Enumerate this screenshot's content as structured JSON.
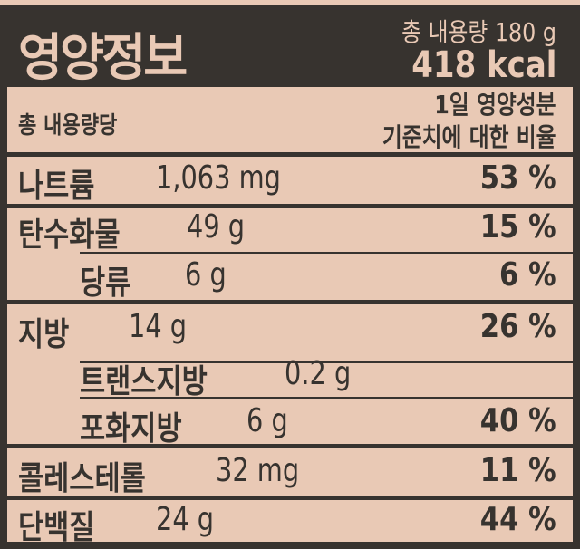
{
  "header": {
    "title": "영양정보",
    "total_amount": "총 내용량 180 g",
    "calories": "418 kcal"
  },
  "subheader": {
    "per_label": "총 내용량당",
    "dv_line1": "1일 영양성분",
    "dv_line2": "기준치에 대한 비율"
  },
  "nutrients": [
    {
      "name": "나트륨",
      "amount": "1,063 mg",
      "percent": "53 %"
    },
    {
      "name": "탄수화물",
      "amount": "49 g",
      "percent": "15 %"
    },
    {
      "name": "당류",
      "amount": "6 g",
      "percent": "6 %"
    },
    {
      "name": "지방",
      "amount": "14 g",
      "percent": "26 %"
    },
    {
      "name": "트랜스지방",
      "amount": "0.2 g",
      "percent": ""
    },
    {
      "name": "포화지방",
      "amount": "6 g",
      "percent": "40 %"
    },
    {
      "name": "콜레스테롤",
      "amount": "32 mg",
      "percent": "11 %"
    },
    {
      "name": "단백질",
      "amount": "24 g",
      "percent": "44 %"
    }
  ],
  "colors": {
    "background": "#e9c9b5",
    "dark": "#37332f"
  }
}
